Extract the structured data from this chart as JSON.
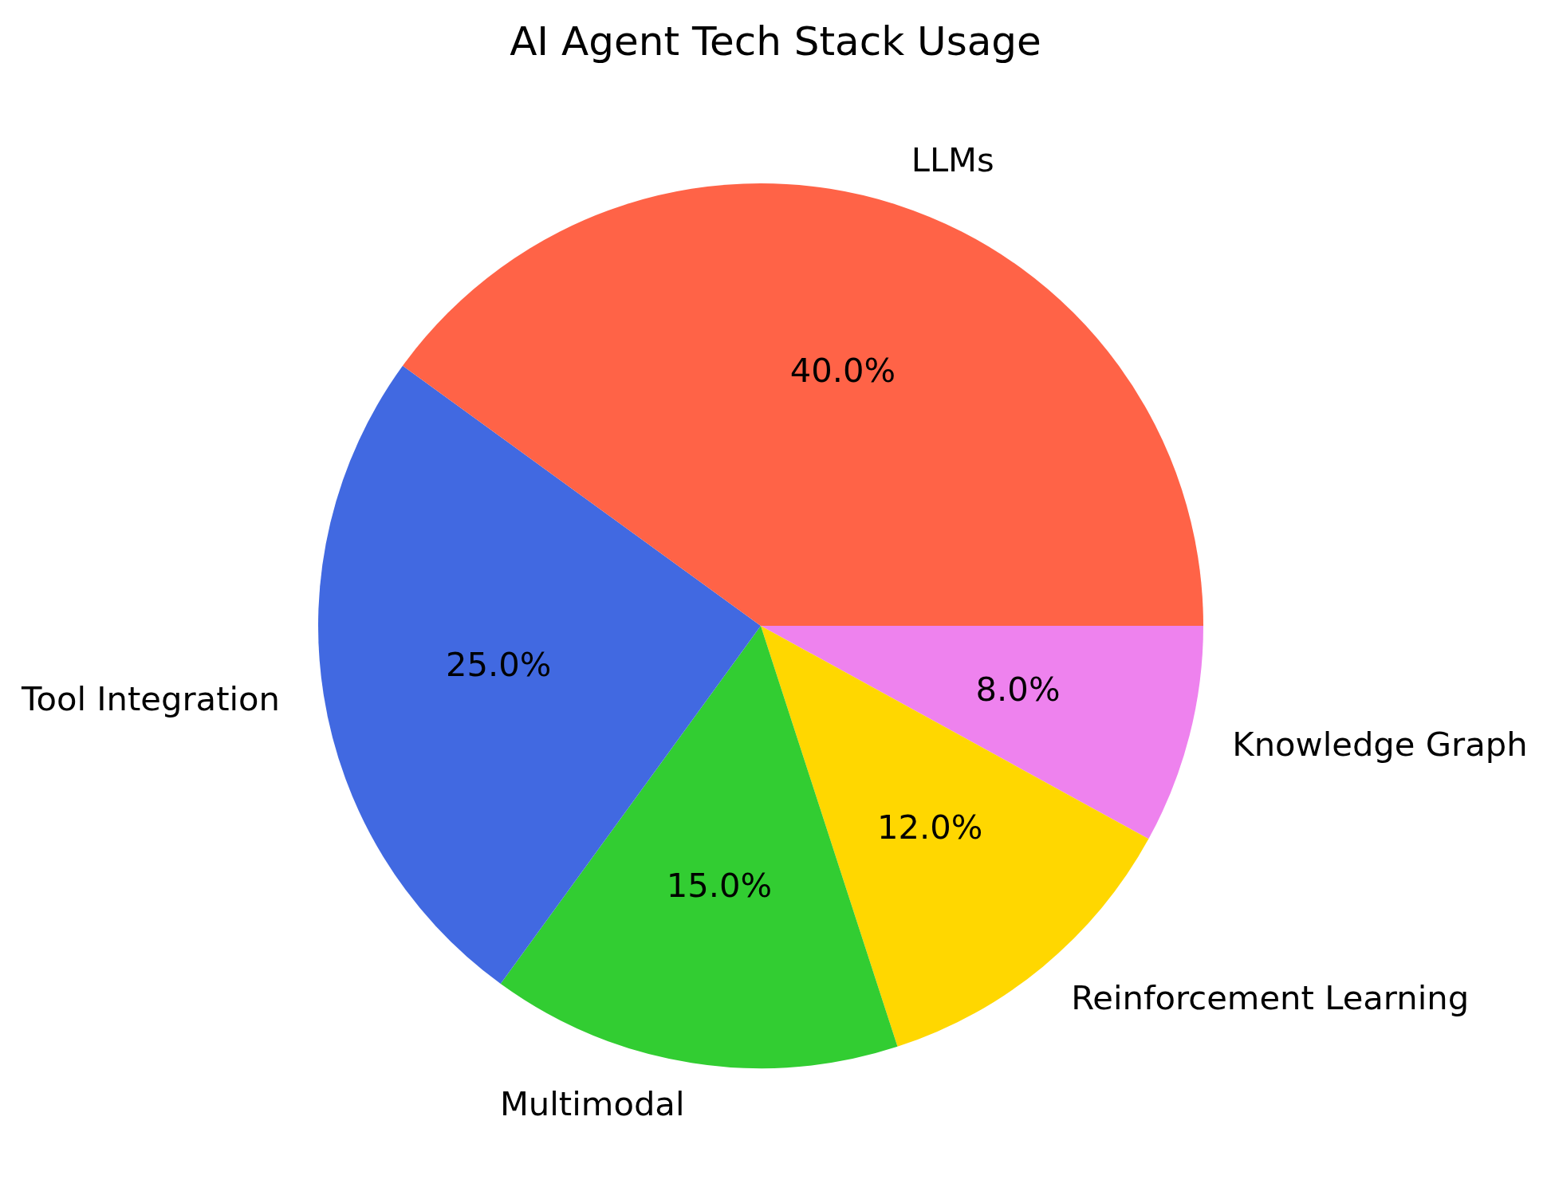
{
  "chart_data": {
    "type": "pie",
    "title": "AI Agent Tech Stack Usage",
    "categories": [
      "LLMs",
      "Tool Integration",
      "Multimodal",
      "Reinforcement Learning",
      "Knowledge Graph"
    ],
    "values": [
      40,
      25,
      15,
      12,
      8
    ],
    "colors": [
      "#ff6347",
      "#4169e1",
      "#32cd32",
      "#ffd700",
      "#ee82ee"
    ],
    "value_labels": [
      "40.0%",
      "25.0%",
      "15.0%",
      "12.0%",
      "8.0%"
    ]
  }
}
